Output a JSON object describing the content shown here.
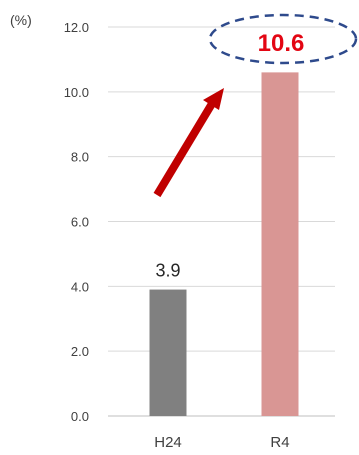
{
  "chart_data": {
    "type": "bar",
    "unit_label": "(%)",
    "categories": [
      "H24",
      "R4"
    ],
    "values": [
      3.9,
      10.6
    ],
    "data_labels": [
      "3.9",
      "10.6"
    ],
    "ylim": [
      0,
      12
    ],
    "yticks": [
      "0.0",
      "2.0",
      "4.0",
      "6.0",
      "8.0",
      "10.0",
      "12.0"
    ],
    "grid": true,
    "colors": {
      "bar_h24": "#808080",
      "bar_r4": "#d99694",
      "highlight_label": "#e30613",
      "arrow": "#c00000",
      "ellipse": "#2e4a8c",
      "grid": "#d9d9d9",
      "text": "#404040"
    }
  }
}
